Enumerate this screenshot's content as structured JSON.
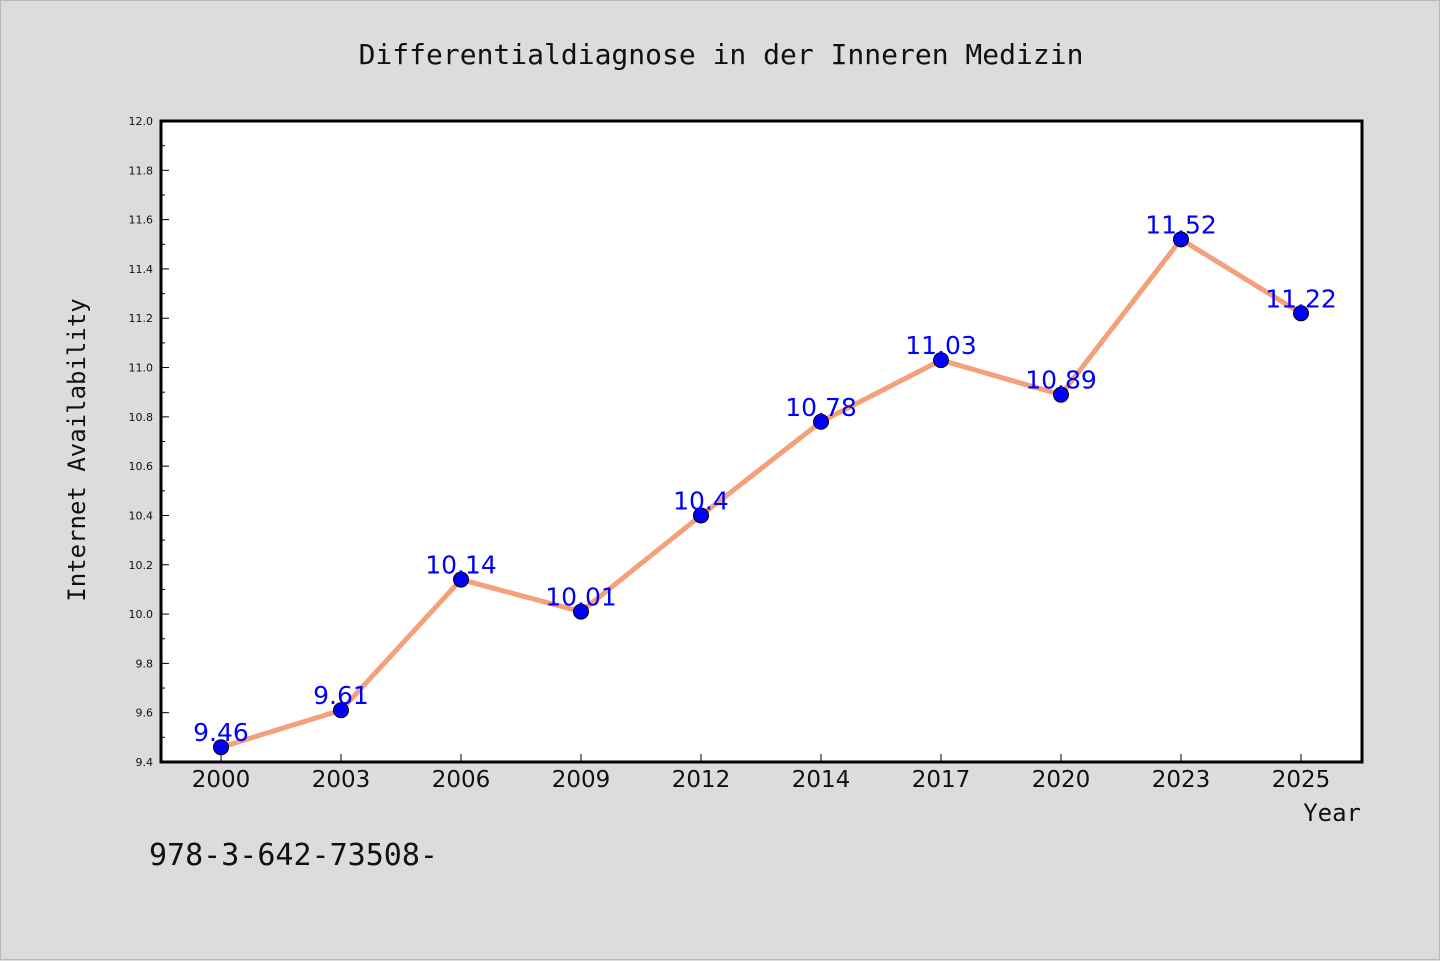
{
  "chart_data": {
    "type": "line",
    "title": "Differentialdiagnose in der Inneren Medizin",
    "xlabel": "Year",
    "ylabel": "Internet Availability",
    "categories": [
      "2000",
      "2003",
      "2006",
      "2009",
      "2012",
      "2014",
      "2017",
      "2020",
      "2023",
      "2025"
    ],
    "series": [
      {
        "values": [
          9.46,
          9.61,
          10.14,
          10.01,
          10.4,
          10.78,
          11.03,
          10.89,
          11.52,
          11.22
        ],
        "labels": [
          "9.46",
          "9.61",
          "10.14",
          "10.01",
          "10.4",
          "10.78",
          "11.03",
          "10.89",
          "11.52",
          "11.22"
        ],
        "line_color": "#f4a07a",
        "marker_color": "#0000ff"
      }
    ],
    "ylim": [
      9.4,
      12.0
    ],
    "yticks": [
      "9.4",
      "9.6",
      "9.8",
      "10.0",
      "10.2",
      "10.4",
      "10.6",
      "10.8",
      "11.0",
      "11.2",
      "11.4",
      "11.6",
      "11.8",
      "12.0"
    ],
    "grid": false,
    "legend": "none"
  },
  "footer": {
    "isbn": "978-3-642-73508-"
  },
  "colors": {
    "background": "#dcdcdc",
    "plot_background": "#ffffff",
    "axes": "#000000"
  }
}
